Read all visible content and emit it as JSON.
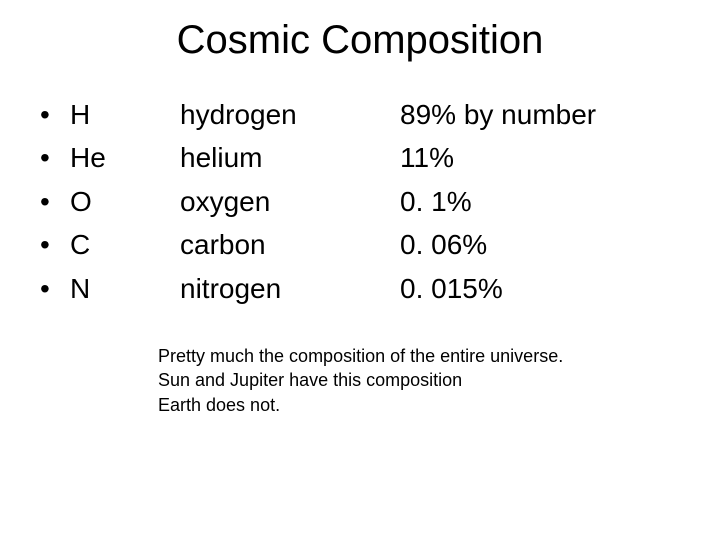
{
  "title": "Cosmic Composition",
  "bullet_char": "•",
  "title_fontsize": 40,
  "body_fontsize": 28,
  "footer_fontsize": 18,
  "text_color": "#000000",
  "background_color": "#ffffff",
  "by_number_label": "  by number",
  "elements": [
    {
      "symbol": "H",
      "name": "hydrogen",
      "percent": "89%",
      "show_by_number": true
    },
    {
      "symbol": "He",
      "name": "helium",
      "percent": "11%",
      "show_by_number": false
    },
    {
      "symbol": "O",
      "name": "oxygen",
      "percent": "0. 1%",
      "show_by_number": false
    },
    {
      "symbol": "C",
      "name": "carbon",
      "percent": "0. 06%",
      "show_by_number": false
    },
    {
      "symbol": "N",
      "name": "nitrogen",
      "percent": "0. 015%",
      "show_by_number": false
    }
  ],
  "footer_lines": [
    "Pretty much the composition of the entire universe.",
    "Sun and Jupiter have this composition",
    "Earth does not."
  ]
}
